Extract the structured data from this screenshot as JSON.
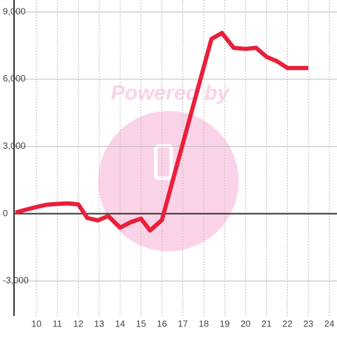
{
  "chart_data": {
    "type": "line",
    "watermark": "Powered by",
    "x": [
      9,
      9.5,
      10,
      10.5,
      11,
      11.5,
      12,
      12.43,
      12.93,
      13.43,
      14,
      14.5,
      15,
      15.43,
      16,
      18.37,
      18.87,
      19.43,
      20,
      20.5,
      21,
      21.5,
      22,
      23
    ],
    "series": [
      {
        "color": "#e8203a",
        "values": [
          50,
          180,
          300,
          400,
          440,
          460,
          420,
          -190,
          -300,
          -100,
          -620,
          -380,
          -220,
          -750,
          -280,
          7800,
          8060,
          7400,
          7350,
          7400,
          7000,
          6800,
          6500,
          6500
        ]
      }
    ],
    "xlim": [
      8.93,
      24.37
    ],
    "xticks": [
      10,
      11,
      12,
      13,
      14,
      15,
      16,
      17,
      18,
      19,
      20,
      21,
      22,
      23,
      24
    ],
    "ylim": [
      -4560,
      9000
    ],
    "yticks": [
      {
        "value": -3000,
        "label": "-3,000"
      },
      0,
      {
        "value": 3000,
        "label": "3,000"
      },
      {
        "value": 6000,
        "label": "6,000"
      },
      {
        "value": 9000,
        "label": "9,000"
      }
    ],
    "grid": true
  }
}
